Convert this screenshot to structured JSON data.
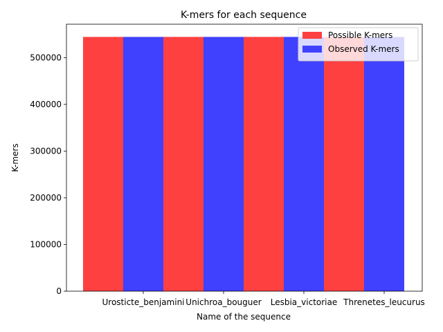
{
  "chart_data": {
    "type": "bar",
    "title": "K-mers for each sequence",
    "xlabel": "Name of the sequence",
    "ylabel": "K-mers",
    "categories": [
      "Urosticte_benjamini",
      "Unichroa_bouguer",
      "Lesbia_victoriae",
      "Threnetes_leucurus"
    ],
    "series": [
      {
        "name": "Possible K-mers",
        "color": "#ff4040",
        "values": [
          544500,
          544500,
          544500,
          544500
        ]
      },
      {
        "name": "Observed K-mers",
        "color": "#4040ff",
        "values": [
          544500,
          544500,
          544500,
          544500
        ]
      }
    ],
    "ylim": [
      0,
      571725
    ],
    "yticks": [
      0,
      100000,
      200000,
      300000,
      400000,
      500000
    ],
    "yticklabels": [
      "0",
      "100000",
      "200000",
      "300000",
      "400000",
      "500000"
    ],
    "grid": false,
    "legend": "top-right"
  }
}
